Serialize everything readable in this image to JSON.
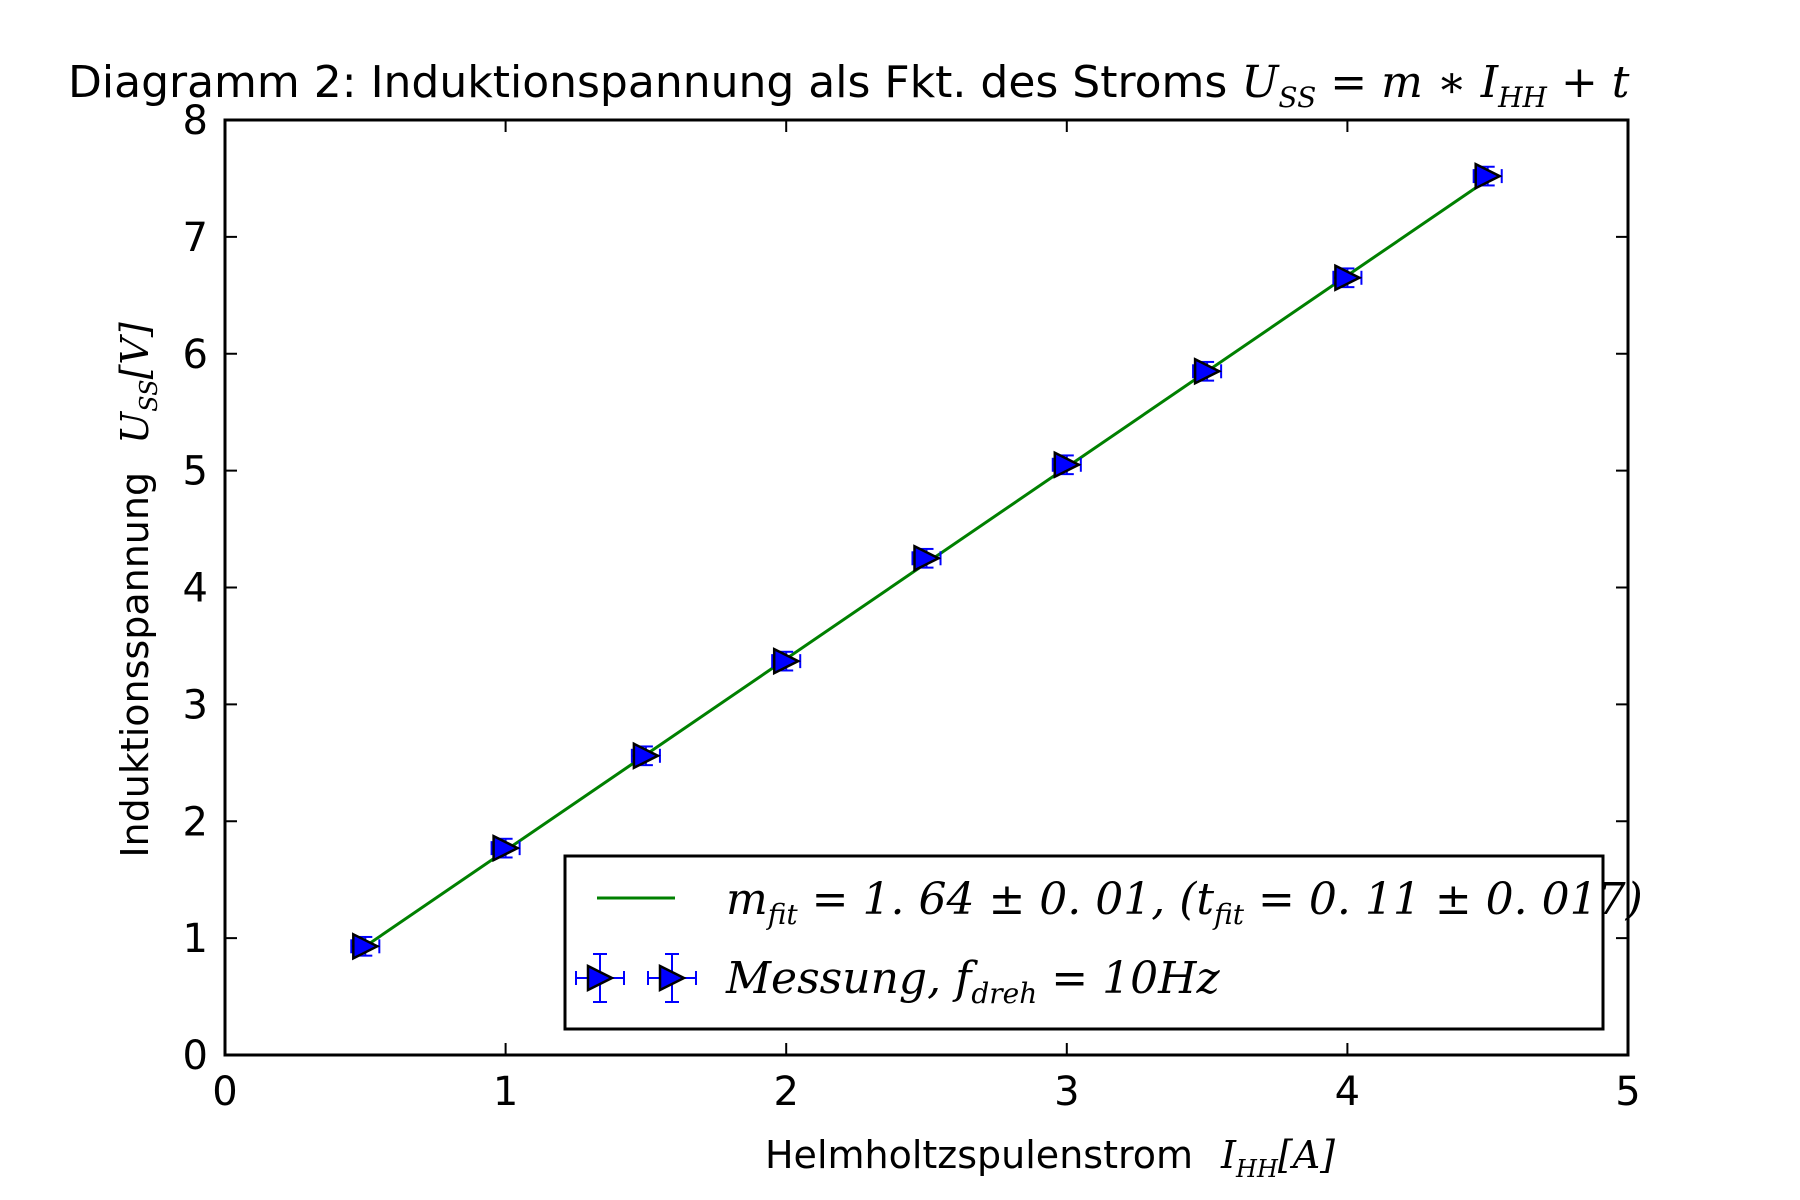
{
  "chart_data": {
    "type": "scatter",
    "title": "Diagramm 2: Induktionspannung als Fkt. des Stroms",
    "title_formula": {
      "lhs": "U",
      "lhs_sub": "SS",
      "mid": " = m ∗ I",
      "mid_sub": "HH",
      "rhs": " + t"
    },
    "xlabel": "Helmholtzspulenstrom",
    "xlabel_unit": {
      "sym": "I",
      "sub": "HH",
      "rest": "[A]"
    },
    "ylabel": "Induktionsspannung",
    "ylabel_unit": {
      "sym": "U",
      "sub": "SS",
      "rest": "[V]"
    },
    "xlim": [
      0,
      5
    ],
    "ylim": [
      0,
      8
    ],
    "xticks": [
      "0",
      "1",
      "2",
      "3",
      "4",
      "5"
    ],
    "yticks": [
      "0",
      "1",
      "2",
      "3",
      "4",
      "5",
      "6",
      "7",
      "8"
    ],
    "grid": false,
    "legend_position": "lower-right",
    "series": [
      {
        "name": "Messung, f_dreh = 10Hz",
        "kind": "errorbar",
        "marker": "triangle-right",
        "color": "#0000ff",
        "x": [
          0.5,
          1.0,
          1.5,
          2.0,
          2.5,
          3.0,
          3.5,
          4.0,
          4.5
        ],
        "y": [
          0.93,
          1.77,
          2.56,
          3.37,
          4.25,
          5.05,
          5.85,
          6.65,
          7.52
        ],
        "xerr": 0.05,
        "yerr": 0.08
      },
      {
        "name": "m_fit = 1.64 ± 0.01, (t_fit = 0.11 ± 0.017)",
        "kind": "line",
        "color": "#008000",
        "slope": 1.64,
        "intercept": 0.11,
        "x_range": [
          0.5,
          4.5
        ]
      }
    ],
    "legend": {
      "fit": {
        "a": "m",
        "a_sub": "fit",
        "b": " = 1. 64 ± 0. 01, (t",
        "b_sub": "fit",
        "c": " = 0. 11 ± 0. 017)"
      },
      "meas": {
        "a": "Messung, f",
        "a_sub": "dreh",
        "b": " = 10Hz"
      }
    }
  }
}
